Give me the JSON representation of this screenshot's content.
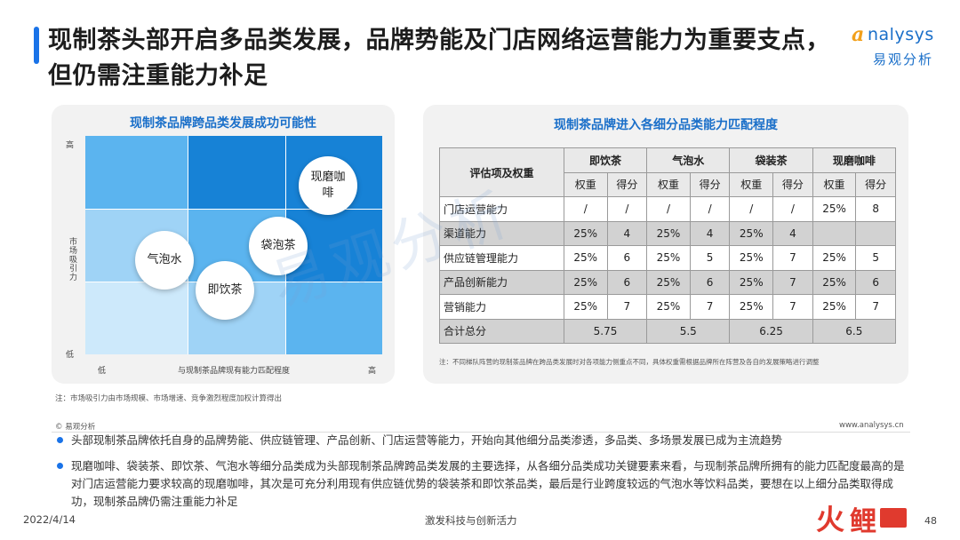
{
  "header": {
    "title": "现制茶头部开启多品类发展，品牌势能及门店网络运营能力为重要支点，但仍需注重能力补足",
    "logo_word": "nalysys",
    "logo_a": "a",
    "logo_cn": "易观分析"
  },
  "colors": {
    "accent": "#1a73e8",
    "title_blue": "#1a6fc9",
    "dark_cell": "#1782d6",
    "mid_cell": "#5bb4ef",
    "light_cell": "#9fd3f6",
    "pale_cell": "#cde9fb"
  },
  "left_panel": {
    "title": "现制茶品牌跨品类发展成功可能性",
    "y_axis": {
      "high": "高",
      "low": "低",
      "label": "市场吸引力"
    },
    "x_axis": {
      "low": "低",
      "high": "高",
      "label": "与现制茶品牌现有能力匹配程度"
    },
    "bubbles": [
      "现磨咖啡",
      "袋泡茶",
      "气泡水",
      "即饮茶"
    ],
    "note": "注：市场吸引力由市场规模、市场增速、竞争激烈程度加权计算得出"
  },
  "right_panel": {
    "title": "现制茶品牌进入各细分品类能力匹配程度",
    "corner_header": "评估项及权重",
    "categories": [
      "即饮茶",
      "气泡水",
      "袋装茶",
      "现磨咖啡"
    ],
    "sub_headers": [
      "权重",
      "得分"
    ],
    "rows": [
      {
        "label": "门店运营能力",
        "cells": [
          "/",
          "/",
          "/",
          "/",
          "/",
          "/",
          "25%",
          "8"
        ]
      },
      {
        "label": "渠道能力",
        "cells": [
          "25%",
          "4",
          "25%",
          "4",
          "25%",
          "4",
          "",
          ""
        ]
      },
      {
        "label": "供应链管理能力",
        "cells": [
          "25%",
          "6",
          "25%",
          "5",
          "25%",
          "7",
          "25%",
          "5"
        ]
      },
      {
        "label": "产品创新能力",
        "cells": [
          "25%",
          "6",
          "25%",
          "6",
          "25%",
          "7",
          "25%",
          "6"
        ]
      },
      {
        "label": "营销能力",
        "cells": [
          "25%",
          "7",
          "25%",
          "7",
          "25%",
          "7",
          "25%",
          "7"
        ]
      }
    ],
    "total_label": "合计总分",
    "totals": [
      "5.75",
      "5.5",
      "6.25",
      "6.5"
    ],
    "note": "注：不同梯队阵营的现制茶品牌在跨品类发展时对各项能力侧重点不同，具体权重需根据品牌所在阵营及各自的发展策略进行调整"
  },
  "source": "© 易观分析",
  "site": "www.analysys.cn",
  "bullets": [
    "头部现制茶品牌依托自身的品牌势能、供应链管理、产品创新、门店运营等能力，开始向其他细分品类渗透，多品类、多场景发展已成为主流趋势",
    "现磨咖啡、袋装茶、即饮茶、气泡水等细分品类成为头部现制茶品牌跨品类发展的主要选择，从各细分品类成功关键要素来看，与现制茶品牌所拥有的能力匹配度最高的是对门店运营能力要求较高的现磨咖啡，其次是可充分利用现有供应链优势的袋装茶和即饮茶品类，最后是行业跨度较远的气泡水等饮料品类，要想在以上细分品类取得成功，现制茶品牌仍需注重能力补足"
  ],
  "footer": {
    "date": "2022/4/14",
    "center": "激发科技与创新活力",
    "page": "48",
    "brand_huo": "火",
    "brand_li": "鲤"
  },
  "watermark": "易观分析"
}
